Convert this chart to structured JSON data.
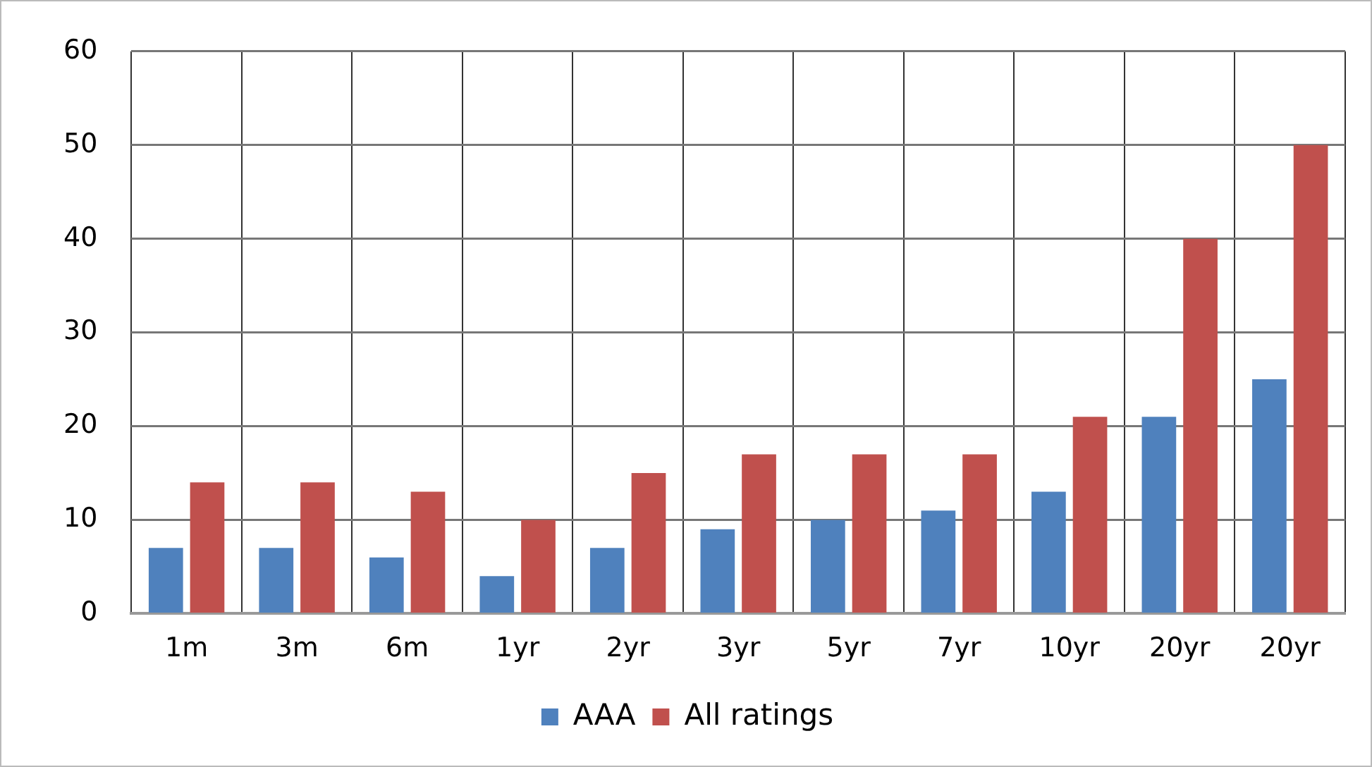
{
  "chart_data": {
    "type": "bar",
    "categories": [
      "1m",
      "3m",
      "6m",
      "1yr",
      "2yr",
      "3yr",
      "5yr",
      "7yr",
      "10yr",
      "20yr",
      "20yr"
    ],
    "series": [
      {
        "name": "AAA",
        "color": "#4f81bd",
        "values": [
          7,
          7,
          6,
          4,
          7,
          9,
          10,
          11,
          13,
          21,
          25
        ]
      },
      {
        "name": "All ratings",
        "color": "#c0504d",
        "values": [
          14,
          14,
          13,
          10,
          15,
          17,
          17,
          17,
          21,
          40,
          50
        ]
      }
    ],
    "ylim": [
      0,
      60
    ],
    "yticks": [
      0,
      10,
      20,
      30,
      40,
      50,
      60
    ],
    "grid": true,
    "legend": "bottom"
  }
}
